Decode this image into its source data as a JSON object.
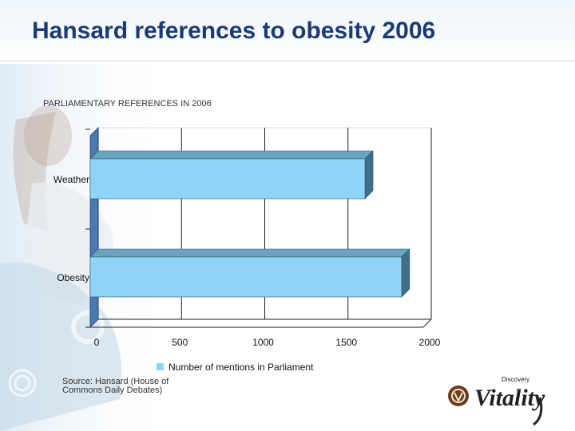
{
  "slide": {
    "title": "Hansard references to obesity 2006"
  },
  "chart_data": {
    "type": "bar",
    "orientation": "horizontal",
    "title": "PARLIAMENTARY REFERENCES IN 2006",
    "categories": [
      "Weather",
      "Obesity"
    ],
    "series": [
      {
        "name": "Number of mentions in Parliament",
        "values": [
          1650,
          1870
        ],
        "color": "#8fd3f7"
      }
    ],
    "xlim": [
      0,
      2000
    ],
    "xticks": [
      0,
      500,
      1000,
      1500,
      2000
    ],
    "xlabel": "",
    "ylabel": "",
    "grid": true,
    "legend": "bottom",
    "three_d": true
  },
  "source": {
    "line1": "Source: Hansard (House of",
    "line2": "Commons Daily Debates)"
  },
  "logo": {
    "brand": "Vitality",
    "company": "Discovery"
  },
  "colors": {
    "title": "#1b3a78",
    "bar_face": "#8fd3f7",
    "bar_top": "#6aa3bd",
    "bar_side": "#3f6f8a",
    "axis_wall": "#4a78b0"
  }
}
